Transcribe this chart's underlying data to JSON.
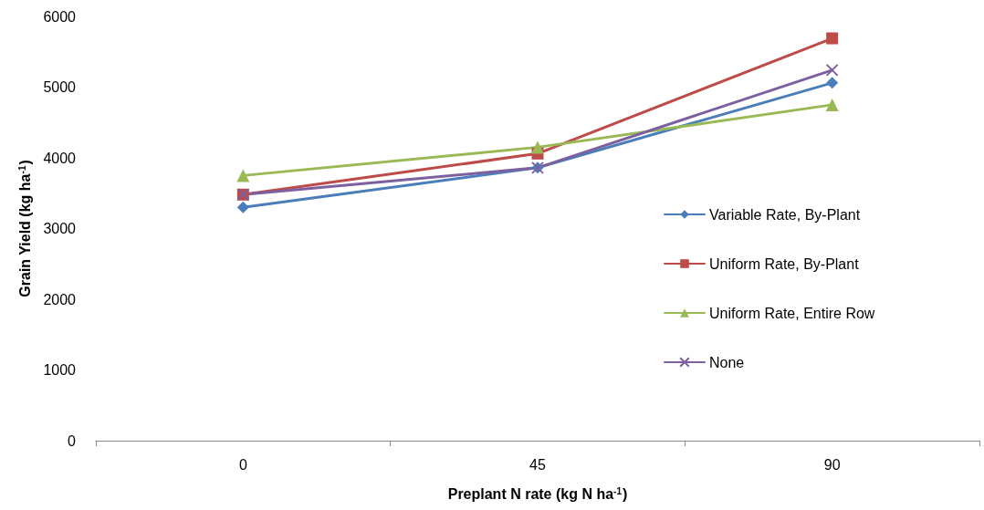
{
  "chart_data": {
    "type": "line",
    "xlabel": "Preplant N rate (kg N ha$^{-1}$)",
    "ylabel": "Grain Yield (kg ha$^{-1}$)",
    "categories": [
      "0",
      "45",
      "90"
    ],
    "series": [
      {
        "name": "Variable Rate, By-Plant",
        "color": "#4a7ebb",
        "marker": "diamond",
        "values": [
          3300,
          3860,
          5060
        ]
      },
      {
        "name": "Uniform Rate, By-Plant",
        "color": "#be4b48",
        "marker": "square",
        "values": [
          3480,
          4060,
          5690
        ]
      },
      {
        "name": "Uniform Rate, Entire Row",
        "color": "#98b954",
        "marker": "triangle",
        "values": [
          3750,
          4150,
          4750
        ]
      },
      {
        "name": "None",
        "color": "#7d60a0",
        "marker": "cross",
        "values": [
          3480,
          3860,
          5240
        ]
      }
    ],
    "ylim": [
      0,
      6000
    ],
    "yticks": [
      0,
      1000,
      2000,
      3000,
      4000,
      5000,
      6000
    ],
    "grid": false,
    "legend": "right",
    "line_style": "solid"
  }
}
